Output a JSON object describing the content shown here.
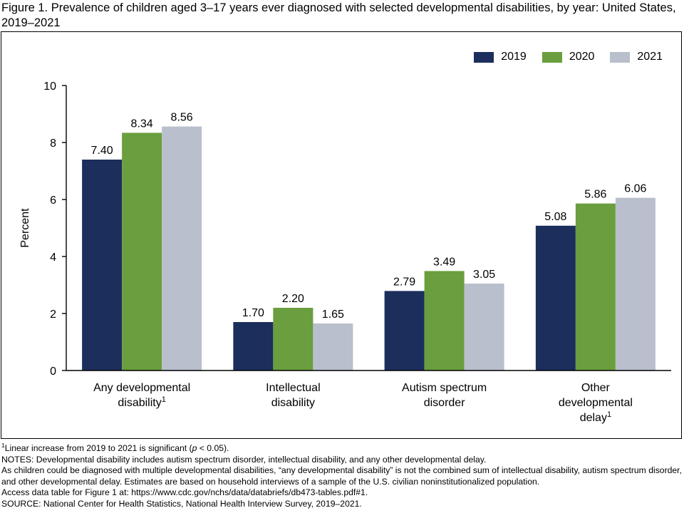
{
  "figure": {
    "title": "Figure 1. Prevalence of children aged 3–17 years ever diagnosed with selected developmental disabilities, by year: United States, 2019–2021"
  },
  "chart_data": {
    "type": "bar",
    "ylabel": "Percent",
    "xlabel": "",
    "ylim": [
      0,
      10
    ],
    "yticks": [
      "0",
      "2",
      "4",
      "6",
      "8",
      "10"
    ],
    "legend_position": "top-right",
    "grid": false,
    "categories": [
      {
        "lines": [
          "Any developmental",
          "disability"
        ],
        "superscript": "1"
      },
      {
        "lines": [
          "Intellectual",
          "disability"
        ],
        "superscript": ""
      },
      {
        "lines": [
          "Autism spectrum",
          "disorder"
        ],
        "superscript": ""
      },
      {
        "lines": [
          "Other",
          "developmental",
          "delay"
        ],
        "superscript": "1"
      }
    ],
    "series": [
      {
        "name": "2019",
        "color": "#1c2e5c",
        "values": [
          7.4,
          1.7,
          2.79,
          5.08
        ],
        "labels": [
          "7.40",
          "1.70",
          "2.79",
          "5.08"
        ]
      },
      {
        "name": "2020",
        "color": "#6a9e3e",
        "values": [
          8.34,
          2.2,
          3.49,
          5.86
        ],
        "labels": [
          "8.34",
          "2.20",
          "3.49",
          "5.86"
        ]
      },
      {
        "name": "2021",
        "color": "#b9bfcc",
        "values": [
          8.56,
          1.65,
          3.05,
          6.06
        ],
        "labels": [
          "8.56",
          "1.65",
          "3.05",
          "6.06"
        ]
      }
    ]
  },
  "footnotes": {
    "note1_sup": "1",
    "note1_pre": "Linear increase from 2019 to 2021 is significant (",
    "note1_p": "p",
    "note1_post": " < 0.05).",
    "notes": "NOTES: Developmental disability includes autism spectrum disorder, intellectual disability, and any other developmental delay.",
    "note3": "As children could be diagnosed with multiple developmental disabilities, “any developmental disability” is not the combined sum of intellectual disability, autism spectrum disorder, and other developmental delay. Estimates are based on household interviews of a sample of the U.S. civilian noninstitutionalized population.",
    "access": "Access data table for Figure 1 at: https://www.cdc.gov/nchs/data/databriefs/db473-tables.pdf#1.",
    "source": "SOURCE: National Center for Health Statistics, National Health Interview Survey, 2019–2021."
  }
}
